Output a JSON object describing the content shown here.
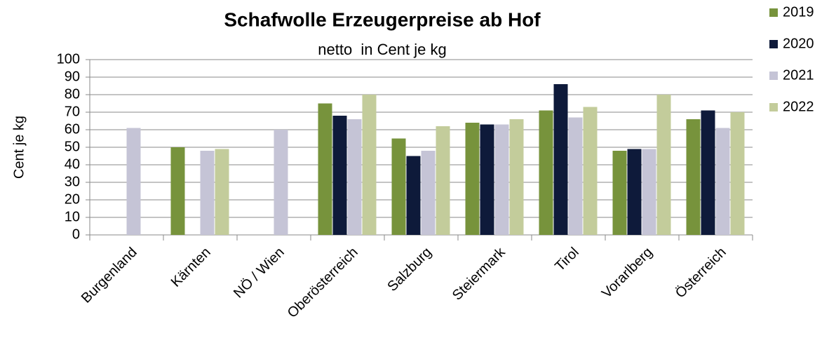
{
  "chart_data": {
    "type": "bar",
    "title": "Schafwolle Erzeugerpreise ab Hof",
    "subtitle": "netto  in Cent je kg",
    "y_label": "Cent je kg",
    "categories": [
      "Burgenland",
      "Kärnten",
      "NÖ / Wien",
      "Oberösterreich",
      "Salzburg",
      "Steiermark",
      "Tirol",
      "Vorarlberg",
      "Österreich"
    ],
    "series": [
      {
        "name": "2019",
        "color": "#77933c",
        "values": [
          null,
          50,
          null,
          75,
          55,
          64,
          71,
          48,
          66
        ]
      },
      {
        "name": "2020",
        "color": "#0e1a3a",
        "values": [
          null,
          null,
          null,
          68,
          45,
          63,
          86,
          49,
          71
        ]
      },
      {
        "name": "2021",
        "color": "#c5c4d6",
        "values": [
          61,
          48,
          60,
          66,
          48,
          63,
          67,
          49,
          61
        ]
      },
      {
        "name": "2022",
        "color": "#c3cc9b",
        "values": [
          null,
          49,
          null,
          80,
          62,
          66,
          73,
          80,
          70
        ]
      }
    ],
    "ylim": [
      0,
      100
    ],
    "yticks": [
      0,
      10,
      20,
      30,
      40,
      50,
      60,
      70,
      80,
      90,
      100
    ],
    "grid": true,
    "legend": "right"
  }
}
